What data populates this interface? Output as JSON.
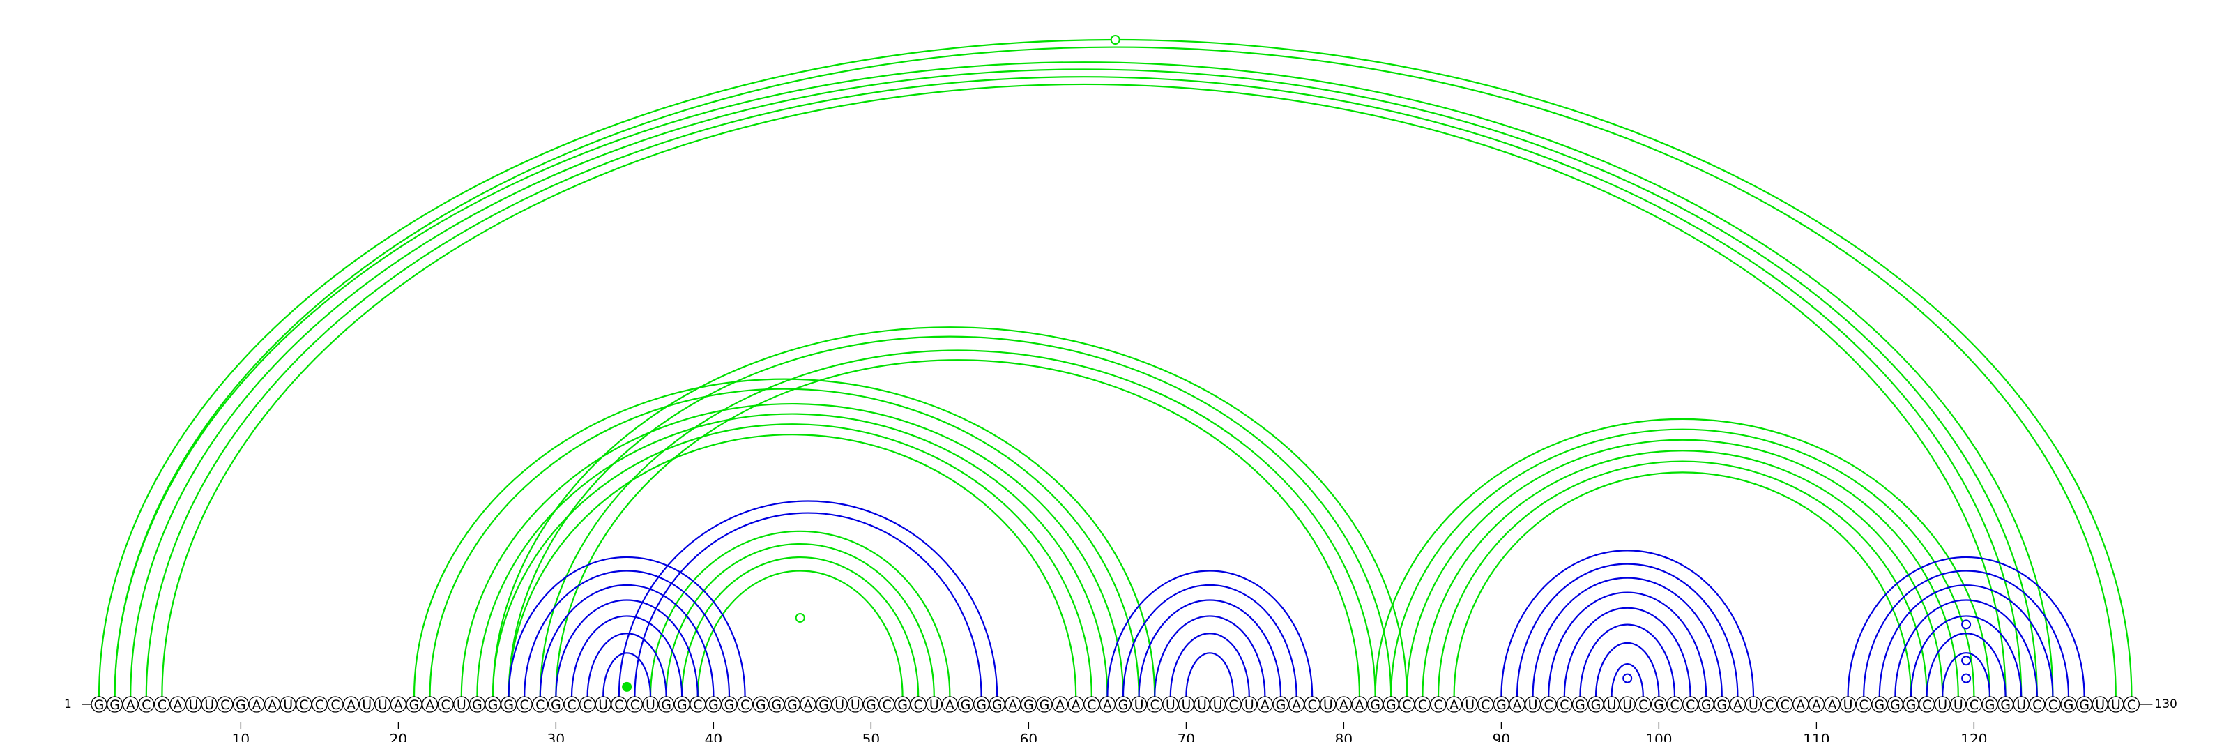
{
  "sequence": "GGACCAUUCGAAUCCCAUUAGACUGGGCCGCCUCCUGGCGGCGGGAGUUGCGCUAGGGAGGAACAGUCUUUUCUAGACUAAGGCCCAUCGAUCCGGUUCGCCGGAUCCAAAUCGGGCUUCGGUCCGGUUC",
  "length": 130,
  "start_label": "1",
  "end_label": "130",
  "ticks": [
    10,
    20,
    30,
    40,
    50,
    60,
    70,
    80,
    90,
    100,
    110,
    120
  ],
  "colors": {
    "green": "#00e000",
    "blue": "#0000e0",
    "nucleotide_stroke": "#000000"
  },
  "chart_data": {
    "type": "arc-diagram",
    "title": "",
    "helices": [
      {
        "color": "green",
        "pairs": [
          [
            1,
            130
          ],
          [
            2,
            129
          ]
        ]
      },
      {
        "color": "green",
        "pairs": [
          [
            2,
            125
          ],
          [
            3,
            124
          ],
          [
            4,
            123
          ],
          [
            5,
            122
          ]
        ]
      },
      {
        "color": "green",
        "pairs": [
          [
            21,
            68
          ],
          [
            22,
            67
          ],
          [
            24,
            66
          ],
          [
            25,
            65
          ],
          [
            26,
            64
          ],
          [
            27,
            63
          ]
        ]
      },
      {
        "color": "green",
        "pairs": [
          [
            26,
            84
          ],
          [
            27,
            83
          ],
          [
            29,
            82
          ],
          [
            30,
            81
          ]
        ]
      },
      {
        "color": "green",
        "pairs": [
          [
            36,
            55
          ],
          [
            37,
            54
          ],
          [
            38,
            53
          ],
          [
            39,
            52
          ]
        ]
      },
      {
        "color": "green",
        "pairs": [
          [
            82,
            121
          ],
          [
            83,
            120
          ],
          [
            84,
            119
          ],
          [
            85,
            118
          ],
          [
            86,
            117
          ],
          [
            87,
            116
          ]
        ]
      },
      {
        "color": "blue",
        "pairs": [
          [
            27,
            42
          ],
          [
            28,
            41
          ],
          [
            29,
            40
          ],
          [
            30,
            39
          ],
          [
            31,
            38
          ],
          [
            32,
            37
          ],
          [
            33,
            36
          ]
        ]
      },
      {
        "color": "blue",
        "pairs": [
          [
            34,
            58
          ],
          [
            35,
            57
          ]
        ]
      },
      {
        "color": "blue",
        "pairs": [
          [
            65,
            78
          ],
          [
            66,
            77
          ],
          [
            67,
            76
          ],
          [
            68,
            75
          ],
          [
            69,
            74
          ],
          [
            70,
            73
          ]
        ]
      },
      {
        "color": "blue",
        "pairs": [
          [
            90,
            106
          ],
          [
            91,
            105
          ],
          [
            92,
            104
          ],
          [
            93,
            103
          ],
          [
            94,
            102
          ],
          [
            95,
            101
          ],
          [
            96,
            100
          ],
          [
            97,
            99
          ]
        ]
      },
      {
        "color": "blue",
        "pairs": [
          [
            112,
            127
          ],
          [
            113,
            126
          ],
          [
            114,
            125
          ],
          [
            115,
            124
          ],
          [
            116,
            123
          ],
          [
            117,
            122
          ],
          [
            118,
            121
          ]
        ]
      }
    ],
    "markers": [
      {
        "color": "green",
        "pos": 65.5,
        "depth": 1,
        "filled": false
      },
      {
        "color": "green",
        "pos": 45.5,
        "depth": 0.12,
        "filled": false
      },
      {
        "color": "green",
        "pos": 34.5,
        "depth": 0.015,
        "filled": true
      },
      {
        "color": "blue",
        "pos": 119.5,
        "depth": 0.11,
        "filled": false
      },
      {
        "color": "blue",
        "pos": 119.5,
        "depth": 0.055,
        "filled": false
      },
      {
        "color": "blue",
        "pos": 119.5,
        "depth": 0.028,
        "filled": false
      },
      {
        "color": "blue",
        "pos": 98,
        "depth": 0.028,
        "filled": false
      }
    ]
  }
}
